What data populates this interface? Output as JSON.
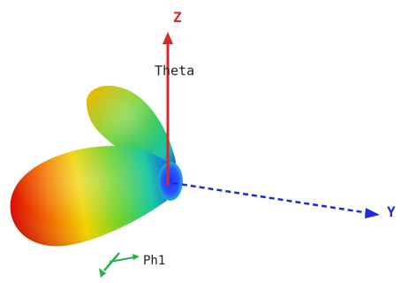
{
  "axes": {
    "z": {
      "label": "Z",
      "color": "#d62a2a"
    },
    "theta": {
      "label": "Theta"
    },
    "y": {
      "label": "Y",
      "color": "#1f2bd9"
    },
    "x": {
      "color": "#22b24a"
    },
    "phi": {
      "label": "Ph1",
      "color": "#22b24a"
    }
  },
  "pattern": {
    "color_scale": [
      "#e00000",
      "#f07a00",
      "#f2e600",
      "#55d82a",
      "#12c8b0",
      "#1e3cff"
    ]
  }
}
